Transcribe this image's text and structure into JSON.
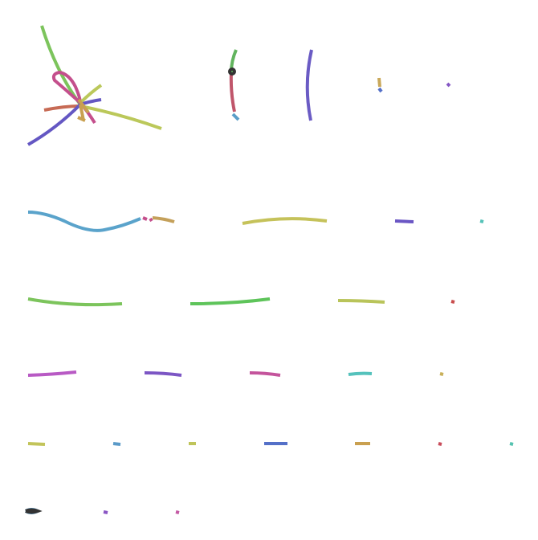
{
  "figure": {
    "rows": [
      {
        "groups": [
          {
            "name": "component-1-1",
            "colors": [
              "#7cc45c",
              "#c44f8c",
              "#c76b55",
              "#bbc85a",
              "#6457c3",
              "#c9a050"
            ]
          },
          {
            "name": "component-1-2",
            "colors": [
              "#62b45e",
              "#c0566b",
              "#5a9ec8"
            ]
          },
          {
            "name": "component-1-3",
            "colors": [
              "#6a5bc4"
            ]
          },
          {
            "name": "component-1-4",
            "colors": [
              "#c9a85a",
              "#5470c8"
            ]
          },
          {
            "name": "component-1-5",
            "colors": [
              "#8456c4"
            ]
          }
        ]
      },
      {
        "groups": [
          {
            "name": "component-2-1",
            "colors": [
              "#5aa3cb",
              "#c4a05a",
              "#c44f8c"
            ]
          },
          {
            "name": "component-2-2",
            "colors": [
              "#c5c25a"
            ]
          },
          {
            "name": "component-2-3",
            "colors": [
              "#6a56c4"
            ]
          },
          {
            "name": "component-2-4",
            "colors": [
              "#55c2b8"
            ]
          }
        ]
      },
      {
        "groups": [
          {
            "name": "component-3-1",
            "colors": [
              "#7cc45c"
            ]
          },
          {
            "name": "component-3-2",
            "colors": [
              "#5ec45a"
            ]
          },
          {
            "name": "component-3-3",
            "colors": [
              "#b9c45a"
            ]
          },
          {
            "name": "component-3-4",
            "colors": [
              "#c84c4c"
            ]
          }
        ]
      },
      {
        "groups": [
          {
            "name": "component-4-1",
            "colors": [
              "#b85ac4"
            ]
          },
          {
            "name": "component-4-2",
            "colors": [
              "#7c56c4"
            ]
          },
          {
            "name": "component-4-3",
            "colors": [
              "#c4549c"
            ]
          },
          {
            "name": "component-4-4",
            "colors": [
              "#55c2bc"
            ]
          },
          {
            "name": "component-4-5",
            "colors": [
              "#c9b05a"
            ]
          }
        ]
      },
      {
        "groups": [
          {
            "name": "component-5-1",
            "colors": [
              "#c2c45a"
            ]
          },
          {
            "name": "component-5-2",
            "colors": [
              "#5a9ac8"
            ]
          },
          {
            "name": "component-5-3",
            "colors": [
              "#bfc45a"
            ]
          },
          {
            "name": "component-5-4",
            "colors": [
              "#5470c8"
            ]
          },
          {
            "name": "component-5-5",
            "colors": [
              "#c9a050"
            ]
          },
          {
            "name": "component-5-6",
            "colors": [
              "#c84c5a"
            ]
          },
          {
            "name": "component-5-7",
            "colors": [
              "#55c2b0"
            ]
          }
        ]
      },
      {
        "groups": [
          {
            "name": "component-6-1",
            "colors": [
              "#5a9ac8",
              "#333333"
            ]
          },
          {
            "name": "component-6-2",
            "colors": [
              "#8a56c4"
            ]
          },
          {
            "name": "component-6-3",
            "colors": [
              "#c45aa4"
            ]
          }
        ]
      }
    ]
  }
}
